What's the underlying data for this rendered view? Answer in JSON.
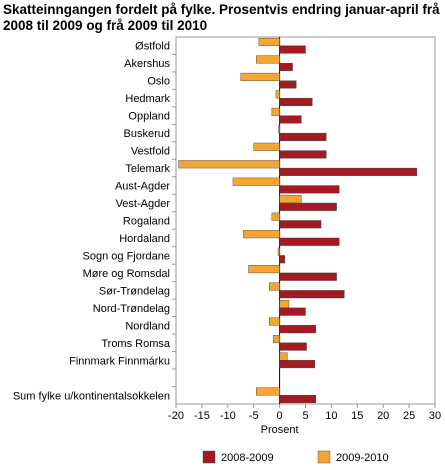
{
  "chart_data": {
    "type": "bar",
    "orientation": "horizontal",
    "title": "Skatteinngangen fordelt på fylke. Prosentvis endring januar-april frå 2008 til 2009 og frå 2009 til 2010",
    "xlabel": "Prosent",
    "xlim": [
      -20,
      30
    ],
    "xticks": [
      -20,
      -15,
      -10,
      -5,
      0,
      5,
      10,
      15,
      20,
      25,
      30
    ],
    "grid": false,
    "legend_position": "bottom",
    "categories": [
      "Østfold",
      "Akershus",
      "Oslo",
      "Hedmark",
      "Oppland",
      "Buskerud",
      "Vestfold",
      "Telemark",
      "Aust-Agder",
      "Vest-Agder",
      "Rogaland",
      "Hordaland",
      "Sogn og Fjordane",
      "Møre og Romsdal",
      "Sør-Trøndelag",
      "Nord-Trøndelag",
      "Nordland",
      "Troms Romsa",
      "Finnmark Finnmárku",
      "",
      "Sum fylke u/kontinentalsokkelen"
    ],
    "series": [
      {
        "name": "2008-2009",
        "color": "#a31a22",
        "values": [
          5.0,
          2.5,
          3.2,
          6.3,
          4.2,
          9.0,
          9.0,
          26.5,
          11.5,
          11.0,
          8.0,
          11.5,
          1.0,
          11.0,
          12.5,
          5.0,
          7.0,
          5.2,
          6.8,
          null,
          7.0
        ]
      },
      {
        "name": "2009-2010",
        "color": "#f5a531",
        "values": [
          -4.0,
          -4.5,
          -7.5,
          -0.7,
          -1.5,
          -0.2,
          -5.0,
          -19.5,
          -9.0,
          4.2,
          -1.5,
          -7.0,
          -0.3,
          -6.0,
          -2.0,
          1.8,
          -2.0,
          -1.2,
          1.5,
          null,
          -4.5
        ]
      }
    ]
  }
}
